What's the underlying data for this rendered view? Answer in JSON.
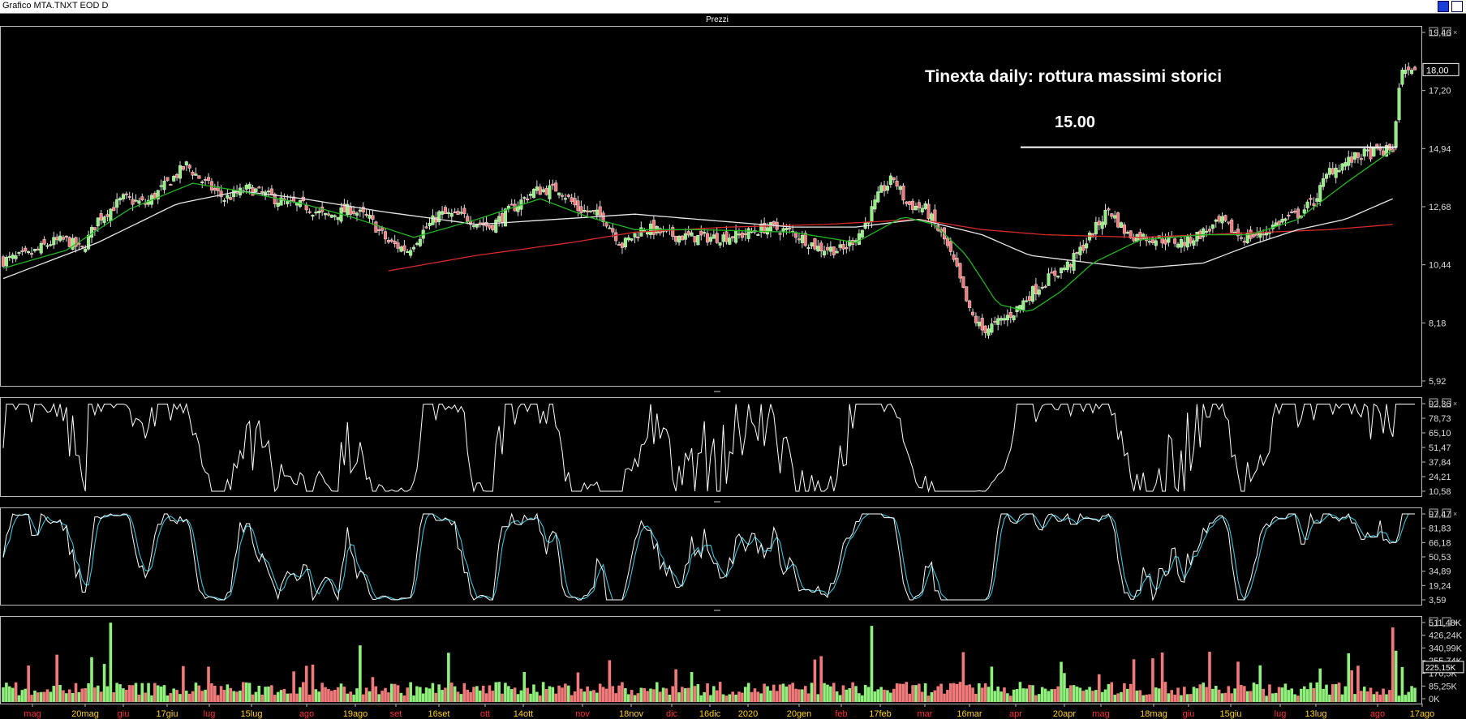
{
  "window": {
    "title": "Grafico MTA.TNXT EOD D",
    "pane_title": "Prezzi",
    "min_icon": "minimize-icon",
    "max_icon": "maximize-icon"
  },
  "annotation": {
    "title": "Tinexta daily: rottura massimi storici",
    "level_label": "15.00",
    "level_value": 15.0
  },
  "colors": {
    "up": "#8ff07c",
    "down": "#f07a7a",
    "ma_fast": "#22b422",
    "ma_mid": "#e8e8e8",
    "ma_slow": "#d42a2a",
    "osc1": "#ffffff",
    "stoch_k": "#ffffff",
    "stoch_d": "#3ec0d8",
    "vol_up": "#8ff07c",
    "vol_down": "#f07a7a"
  },
  "chart_data": [
    {
      "type": "candlestick",
      "name": "Prezzi",
      "y_ticks": [
        "19,46",
        "17,20",
        "14,94",
        "12,68",
        "10,44",
        "8,18",
        "5,92"
      ],
      "ylim": [
        5.92,
        19.46
      ],
      "last_price_label": "18,00",
      "x_labels": [
        {
          "text": "mag",
          "color": "#ff3030"
        },
        {
          "text": "20mag",
          "color": "#ffd020"
        },
        {
          "text": "giu",
          "color": "#ff3030"
        },
        {
          "text": "17giu",
          "color": "#ffd020"
        },
        {
          "text": "lug",
          "color": "#ff3030"
        },
        {
          "text": "15lug",
          "color": "#ffd020"
        },
        {
          "text": "ago",
          "color": "#ff3030"
        },
        {
          "text": "19ago",
          "color": "#ffd020"
        },
        {
          "text": "set",
          "color": "#ff3030"
        },
        {
          "text": "16set",
          "color": "#ffd020"
        },
        {
          "text": "ott",
          "color": "#ff3030"
        },
        {
          "text": "14ott",
          "color": "#ffd020"
        },
        {
          "text": "nov",
          "color": "#ff3030"
        },
        {
          "text": "18nov",
          "color": "#ffd020"
        },
        {
          "text": "dic",
          "color": "#ff3030"
        },
        {
          "text": "16dic",
          "color": "#ffd020"
        },
        {
          "text": "2020",
          "color": "#ffd020"
        },
        {
          "text": "20gen",
          "color": "#ffd020"
        },
        {
          "text": "feb",
          "color": "#ff3030"
        },
        {
          "text": "17feb",
          "color": "#ffd020"
        },
        {
          "text": "mar",
          "color": "#ff3030"
        },
        {
          "text": "16mar",
          "color": "#ffd020"
        },
        {
          "text": "apr",
          "color": "#ff3030"
        },
        {
          "text": "20apr",
          "color": "#ffd020"
        },
        {
          "text": "mag",
          "color": "#ff3030"
        },
        {
          "text": "18mag",
          "color": "#ffd020"
        },
        {
          "text": "giu",
          "color": "#ff3030"
        },
        {
          "text": "15giu",
          "color": "#ffd020"
        },
        {
          "text": "lug",
          "color": "#ff3030"
        },
        {
          "text": "13lug",
          "color": "#ffd020"
        },
        {
          "text": "ago",
          "color": "#ff3030"
        },
        {
          "text": "17ago",
          "color": "#ffd020"
        }
      ],
      "close_anchors": [
        [
          0,
          10.6
        ],
        [
          8,
          10.8
        ],
        [
          15,
          11.3
        ],
        [
          20,
          11.4
        ],
        [
          25,
          11.0
        ],
        [
          30,
          12.2
        ],
        [
          38,
          13.0
        ],
        [
          45,
          12.8
        ],
        [
          52,
          13.6
        ],
        [
          58,
          14.3
        ],
        [
          63,
          13.7
        ],
        [
          70,
          13.0
        ],
        [
          78,
          13.4
        ],
        [
          84,
          13.1
        ],
        [
          90,
          12.8
        ],
        [
          96,
          12.7
        ],
        [
          102,
          12.3
        ],
        [
          110,
          12.6
        ],
        [
          116,
          12.2
        ],
        [
          122,
          11.3
        ],
        [
          128,
          11.0
        ],
        [
          132,
          11.6
        ],
        [
          138,
          12.4
        ],
        [
          146,
          12.3
        ],
        [
          154,
          11.9
        ],
        [
          160,
          12.5
        ],
        [
          168,
          13.3
        ],
        [
          176,
          13.4
        ],
        [
          182,
          12.6
        ],
        [
          190,
          12.3
        ],
        [
          196,
          11.2
        ],
        [
          203,
          11.9
        ],
        [
          210,
          11.6
        ],
        [
          218,
          11.5
        ],
        [
          226,
          11.5
        ],
        [
          234,
          11.6
        ],
        [
          242,
          11.9
        ],
        [
          250,
          11.7
        ],
        [
          258,
          11.1
        ],
        [
          266,
          11.0
        ],
        [
          272,
          11.8
        ],
        [
          278,
          13.3
        ],
        [
          282,
          13.8
        ],
        [
          286,
          12.8
        ],
        [
          292,
          12.6
        ],
        [
          298,
          11.4
        ],
        [
          302,
          10.2
        ],
        [
          306,
          8.6
        ],
        [
          310,
          7.9
        ],
        [
          314,
          8.1
        ],
        [
          320,
          8.6
        ],
        [
          326,
          9.4
        ],
        [
          332,
          10.0
        ],
        [
          338,
          10.5
        ],
        [
          344,
          11.5
        ],
        [
          350,
          12.6
        ],
        [
          356,
          11.6
        ],
        [
          362,
          11.5
        ],
        [
          368,
          11.4
        ],
        [
          374,
          11.3
        ],
        [
          380,
          11.7
        ],
        [
          386,
          12.1
        ],
        [
          392,
          11.5
        ],
        [
          398,
          11.6
        ],
        [
          404,
          12.1
        ],
        [
          410,
          12.4
        ],
        [
          415,
          12.9
        ],
        [
          420,
          14.1
        ],
        [
          425,
          14.4
        ],
        [
          430,
          14.7
        ],
        [
          435,
          14.8
        ],
        [
          440,
          14.9
        ],
        [
          441,
          16.0
        ],
        [
          442,
          17.3
        ],
        [
          443,
          18.0
        ]
      ],
      "ma_fast": [
        [
          0,
          10.3
        ],
        [
          20,
          11.0
        ],
        [
          40,
          12.6
        ],
        [
          60,
          13.6
        ],
        [
          75,
          13.3
        ],
        [
          95,
          12.8
        ],
        [
          110,
          12.3
        ],
        [
          130,
          11.5
        ],
        [
          150,
          12.2
        ],
        [
          170,
          13.0
        ],
        [
          185,
          12.3
        ],
        [
          200,
          11.8
        ],
        [
          220,
          11.8
        ],
        [
          250,
          11.7
        ],
        [
          270,
          11.3
        ],
        [
          285,
          12.3
        ],
        [
          295,
          12.0
        ],
        [
          305,
          10.8
        ],
        [
          315,
          8.9
        ],
        [
          325,
          8.6
        ],
        [
          335,
          9.4
        ],
        [
          345,
          10.5
        ],
        [
          360,
          11.4
        ],
        [
          380,
          11.6
        ],
        [
          395,
          11.6
        ],
        [
          410,
          12.2
        ],
        [
          425,
          13.6
        ],
        [
          440,
          14.9
        ]
      ],
      "ma_mid": [
        [
          0,
          9.9
        ],
        [
          30,
          11.3
        ],
        [
          55,
          12.8
        ],
        [
          75,
          13.3
        ],
        [
          95,
          13.0
        ],
        [
          120,
          12.5
        ],
        [
          150,
          12.0
        ],
        [
          175,
          12.2
        ],
        [
          200,
          12.4
        ],
        [
          220,
          12.2
        ],
        [
          250,
          11.9
        ],
        [
          270,
          11.9
        ],
        [
          290,
          12.2
        ],
        [
          310,
          11.6
        ],
        [
          325,
          10.8
        ],
        [
          345,
          10.5
        ],
        [
          360,
          10.3
        ],
        [
          380,
          10.5
        ],
        [
          395,
          11.2
        ],
        [
          410,
          11.8
        ],
        [
          425,
          12.2
        ],
        [
          440,
          13.0
        ]
      ],
      "ma_slow": [
        [
          122,
          10.2
        ],
        [
          150,
          10.8
        ],
        [
          180,
          11.3
        ],
        [
          200,
          11.7
        ],
        [
          230,
          11.9
        ],
        [
          260,
          12.0
        ],
        [
          290,
          12.2
        ],
        [
          310,
          11.8
        ],
        [
          330,
          11.6
        ],
        [
          360,
          11.5
        ],
        [
          380,
          11.6
        ],
        [
          400,
          11.7
        ],
        [
          420,
          11.8
        ],
        [
          440,
          12.0
        ]
      ],
      "xlim": [
        0,
        447
      ]
    },
    {
      "type": "line",
      "name": "oscillatore",
      "y_ticks": [
        "92,36",
        "78,73",
        "65,10",
        "51,47",
        "37,84",
        "24,21",
        "10,58"
      ],
      "ylim": [
        10.58,
        92.36
      ]
    },
    {
      "type": "line",
      "name": "stocastico",
      "y_ticks": [
        "97,47",
        "81,83",
        "66,18",
        "50,53",
        "34,89",
        "19,24",
        "3,59"
      ],
      "ylim": [
        3.59,
        97.47
      ]
    },
    {
      "type": "bar",
      "name": "volume",
      "y_ticks": [
        "511,48K",
        "426,24K",
        "340,99K",
        "255,74K",
        "170,5K",
        "85,25K",
        "0K"
      ],
      "last_label": "225,15K",
      "ylim": [
        0,
        511.48
      ]
    }
  ]
}
